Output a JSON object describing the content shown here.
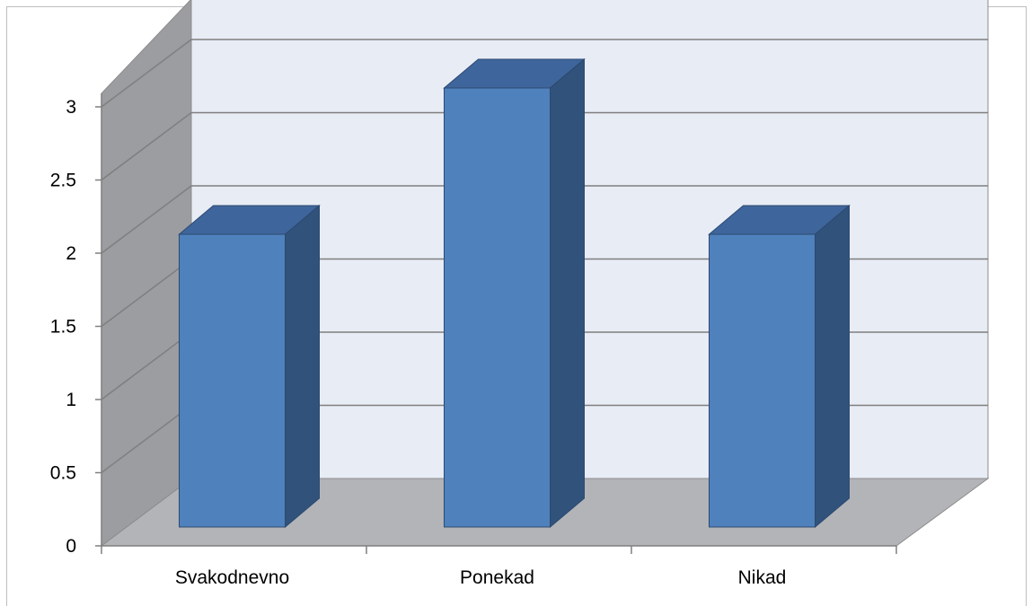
{
  "chart_data": {
    "type": "bar",
    "categories": [
      "Svakodnevno",
      "Ponekad",
      "Nikad"
    ],
    "values": [
      2,
      3,
      2
    ],
    "ylim": [
      0,
      3
    ],
    "yticks": [
      "0",
      "0.5",
      "1",
      "1.5",
      "2",
      "2.5",
      "3"
    ],
    "grid": true,
    "three_d": true,
    "colors": {
      "bar_front": "#4F81BD",
      "bar_side": "#31527A",
      "bar_top": "#3E659C",
      "back_wall": "#E8ECF5",
      "side_wall": "#9C9DA1",
      "floor": "#B3B4B8",
      "gridline": "#7F7F7F"
    }
  }
}
